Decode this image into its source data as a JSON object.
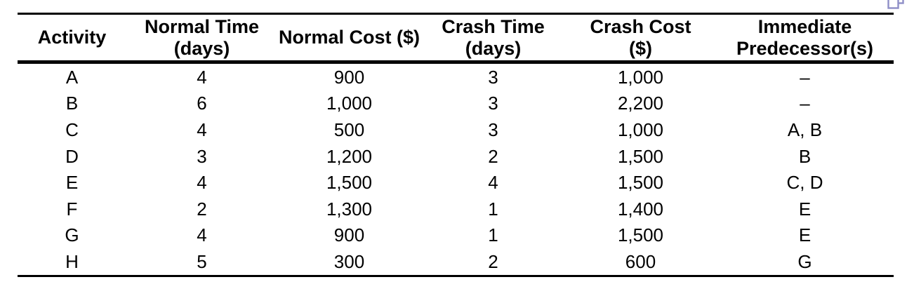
{
  "icon": {
    "name": "popout-window-icon",
    "color": "#8f8fc7"
  },
  "table": {
    "headers": [
      "Activity",
      "Normal Time\n(days)",
      "Normal Cost ($)",
      "Crash Time\n(days)",
      "Crash Cost\n($)",
      "Immediate\nPredecessor(s)"
    ],
    "rows": [
      [
        "A",
        "4",
        "900",
        "3",
        "1,000",
        "–"
      ],
      [
        "B",
        "6",
        "1,000",
        "3",
        "2,200",
        "–"
      ],
      [
        "C",
        "4",
        "500",
        "3",
        "1,000",
        "A, B"
      ],
      [
        "D",
        "3",
        "1,200",
        "2",
        "1,500",
        "B"
      ],
      [
        "E",
        "4",
        "1,500",
        "4",
        "1,500",
        "C, D"
      ],
      [
        "F",
        "2",
        "1,300",
        "1",
        "1,400",
        "E"
      ],
      [
        "G",
        "4",
        "900",
        "1",
        "1,500",
        "E"
      ],
      [
        "H",
        "5",
        "300",
        "2",
        "600",
        "G"
      ]
    ]
  },
  "chart_data": {
    "type": "table",
    "columns": [
      "Activity",
      "Normal Time (days)",
      "Normal Cost ($)",
      "Crash Time (days)",
      "Crash Cost ($)",
      "Immediate Predecessor(s)"
    ],
    "rows": [
      [
        "A",
        4,
        900,
        3,
        1000,
        "–"
      ],
      [
        "B",
        6,
        1000,
        3,
        2200,
        "–"
      ],
      [
        "C",
        4,
        500,
        3,
        1000,
        "A, B"
      ],
      [
        "D",
        3,
        1200,
        2,
        1500,
        "B"
      ],
      [
        "E",
        4,
        1500,
        4,
        1500,
        "C, D"
      ],
      [
        "F",
        2,
        1300,
        1,
        1400,
        "E"
      ],
      [
        "G",
        4,
        900,
        1,
        1500,
        "E"
      ],
      [
        "H",
        5,
        300,
        2,
        600,
        "G"
      ]
    ]
  }
}
